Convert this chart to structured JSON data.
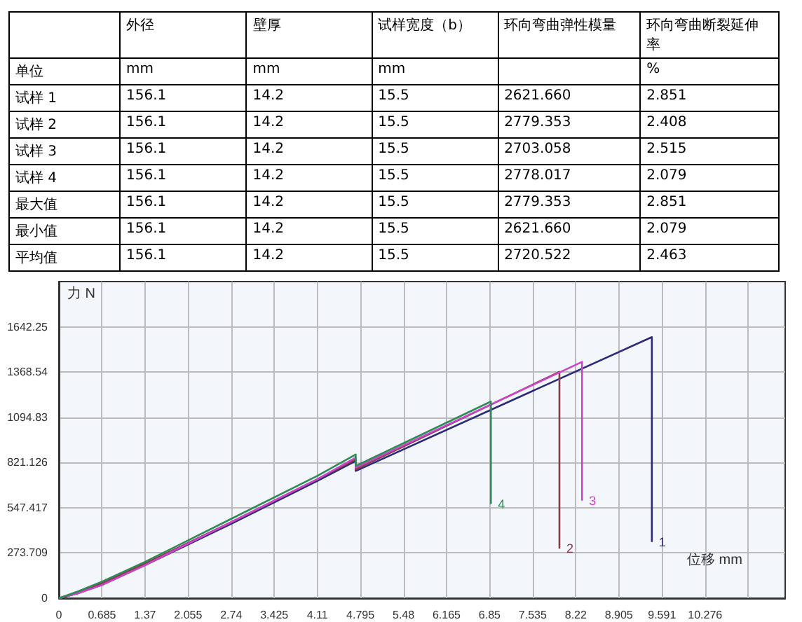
{
  "chart_data": [
    {
      "type": "other",
      "categories": [
        null,
        "外径",
        "壁厚",
        "试样宽度（b）",
        "环向弯曲弹性模量",
        "环向弯曲断裂延伸率"
      ],
      "y_categories": [
        "单位",
        "试样 1",
        "试样 2",
        "试样 3",
        "试样 4",
        "最大值",
        "最小值",
        "平均值"
      ],
      "cell_labels": [
        [
          "mm",
          "mm",
          "mm",
          null,
          "%"
        ],
        [
          "156.1",
          "14.2",
          "15.5",
          "2621.660",
          "2.851"
        ],
        [
          "156.1",
          "14.2",
          "15.5",
          "2779.353",
          "2.408"
        ],
        [
          "156.1",
          "14.2",
          "15.5",
          "2703.058",
          "2.515"
        ],
        [
          "156.1",
          "14.2",
          "15.5",
          "2778.017",
          "2.079"
        ],
        [
          "156.1",
          "14.2",
          "15.5",
          "2779.353",
          "2.851"
        ],
        [
          "156.1",
          "14.2",
          "15.5",
          "2621.660",
          "2.079"
        ],
        [
          "156.1",
          "14.2",
          "15.5",
          "2720.522",
          "2.463"
        ]
      ]
    },
    {
      "type": "line",
      "xlabel": "位移 mm",
      "ylabel": "力 N",
      "xlim": [
        0,
        11.55
      ],
      "ylim": [
        0,
        1916
      ],
      "xticks": [
        0,
        0.685,
        1.37,
        2.055,
        2.74,
        3.425,
        4.11,
        4.795,
        5.48,
        6.165,
        6.85,
        7.535,
        8.22,
        8.905,
        9.591,
        10.276,
        {
          "value": 10.961,
          "label": null
        }
      ],
      "yticks": [
        0,
        273.709,
        547.417,
        821.126,
        1094.83,
        1368.54,
        1642.25
      ],
      "grid": true,
      "series": [
        {
          "name": "1",
          "color": "#2b2b7a",
          "x": [
            0,
            0.3,
            0.685,
            1.37,
            2.74,
            4.11,
            4.72,
            4.72,
            9.43,
            9.43
          ],
          "values": [
            0,
            30,
            80,
            200,
            450,
            710,
            830,
            770,
            1580,
            340
          ]
        },
        {
          "name": "2",
          "color": "#8b3a4a",
          "x": [
            0,
            0.3,
            0.685,
            1.37,
            2.74,
            4.11,
            4.72,
            4.72,
            7.96,
            7.96
          ],
          "values": [
            0,
            30,
            90,
            210,
            460,
            720,
            840,
            780,
            1370,
            300
          ]
        },
        {
          "name": "3",
          "color": "#cc44cc",
          "x": [
            0,
            0.3,
            0.685,
            1.37,
            2.74,
            4.11,
            4.72,
            4.72,
            8.32,
            8.32
          ],
          "values": [
            0,
            30,
            80,
            200,
            460,
            720,
            850,
            790,
            1430,
            590
          ]
        },
        {
          "name": "4",
          "color": "#2e8b57",
          "x": [
            0,
            0.3,
            0.685,
            1.37,
            2.74,
            4.11,
            4.72,
            4.72,
            6.87,
            6.87
          ],
          "values": [
            0,
            40,
            100,
            220,
            480,
            740,
            870,
            800,
            1190,
            570
          ]
        }
      ]
    }
  ]
}
